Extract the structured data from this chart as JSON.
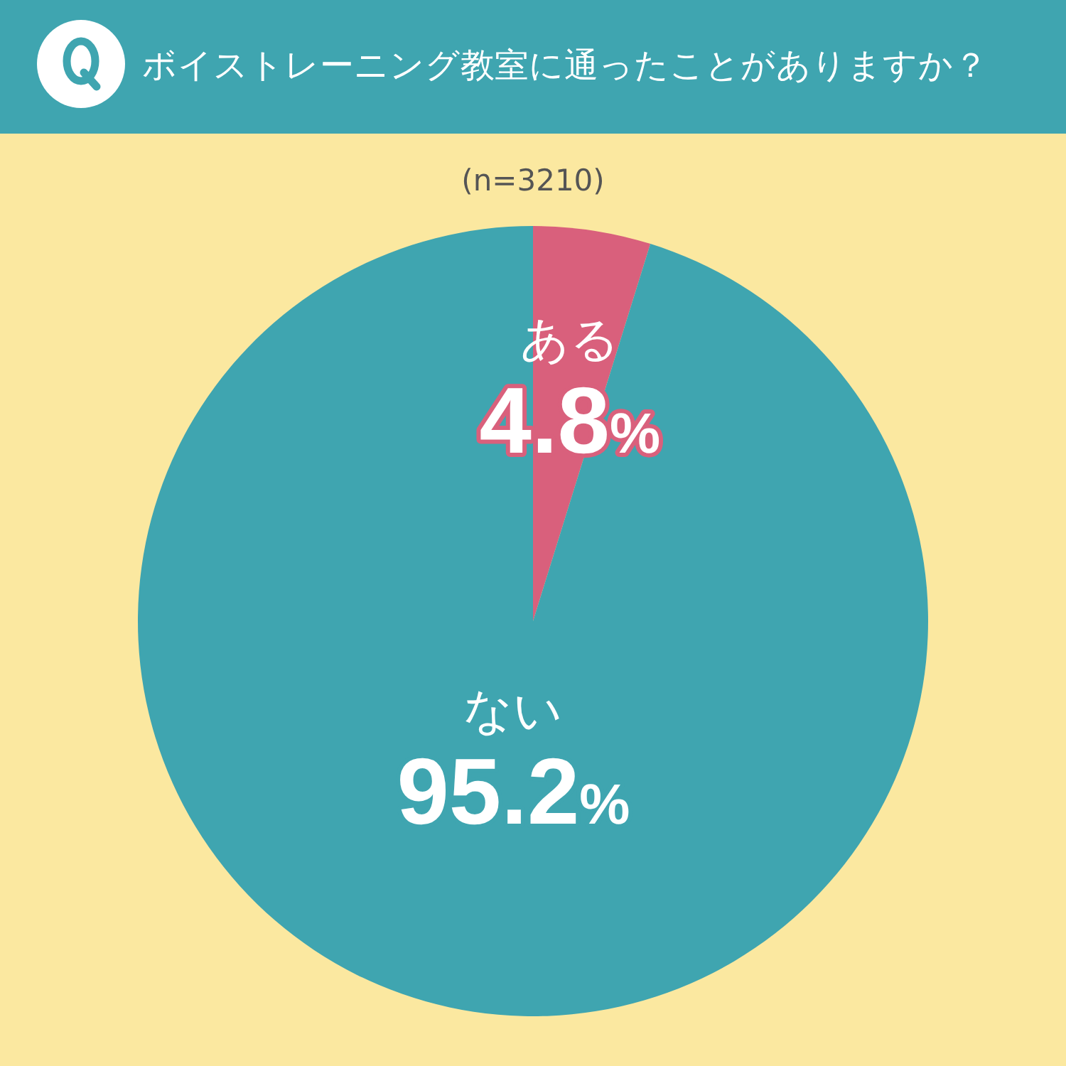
{
  "chart_data": {
    "type": "pie",
    "title": "ボイストレーニング教室に通ったことがありますか？",
    "subtitle": "(n=3210)",
    "categories": [
      "ある",
      "ない"
    ],
    "values": [
      4.8,
      95.2
    ],
    "colors": [
      "#d9607c",
      "#3fa5b0"
    ],
    "value_labels": [
      "4.8%",
      "95.2%"
    ]
  }
}
